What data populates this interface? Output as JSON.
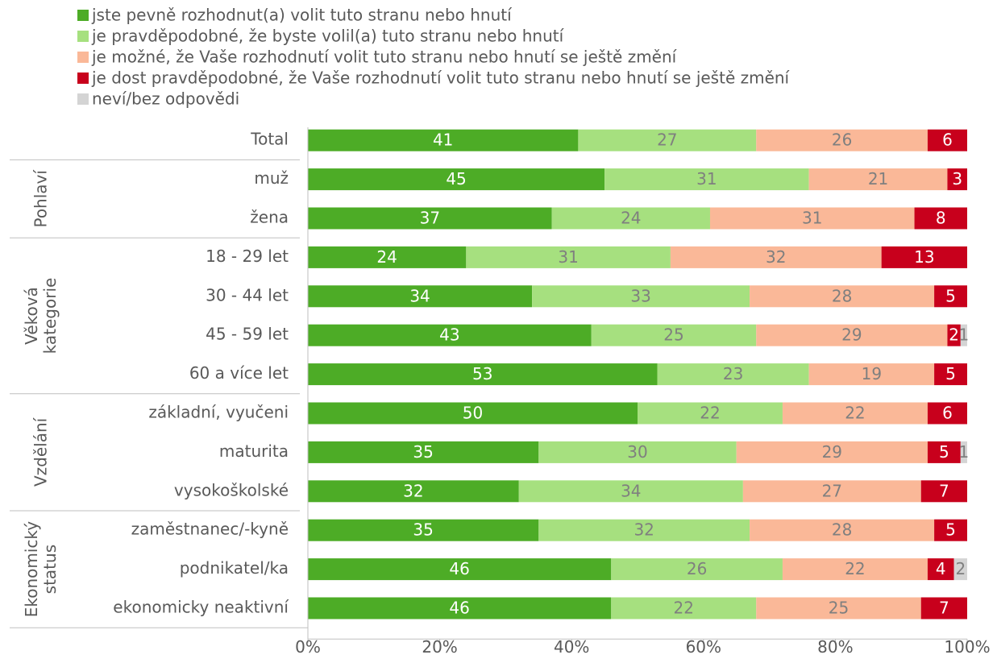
{
  "chart_data": {
    "type": "bar",
    "orientation": "horizontal",
    "stacked": true,
    "percent": true,
    "title": "",
    "xlabel": "",
    "ylabel": "",
    "xlim": [
      0,
      100
    ],
    "x_ticks": [
      "0%",
      "20%",
      "40%",
      "60%",
      "80%",
      "100%"
    ],
    "grid": false,
    "legend_position": "top-left",
    "categories": [
      "Total",
      "muž",
      "žena",
      "18 - 29 let",
      "30 - 44 let",
      "45 - 59 let",
      "60 a více let",
      "základní, vyučeni",
      "maturita",
      "vysokoškolské",
      "zaměstnanec/-kyně",
      "podnikatel/ka",
      "ekonomicky neaktivní"
    ],
    "groups": [
      {
        "label": "Pohlaví",
        "start": 1,
        "end": 2
      },
      {
        "label": "Věková kategorie",
        "lines": [
          "Věková",
          "kategorie"
        ],
        "start": 3,
        "end": 6
      },
      {
        "label": "Vzdělání",
        "start": 7,
        "end": 9
      },
      {
        "label": "Ekonomický status",
        "lines": [
          "Ekonomický",
          "status"
        ],
        "start": 10,
        "end": 12
      }
    ],
    "series": [
      {
        "name": "jste pevně rozhodnut(a) volit tuto stranu nebo hnutí",
        "color": "#4dac26",
        "label_color": "#ffffff",
        "values": [
          41,
          45,
          37,
          24,
          34,
          43,
          53,
          50,
          35,
          32,
          35,
          46,
          46
        ]
      },
      {
        "name": "je pravděpodobné, že byste volil(a) tuto stranu nebo hnutí",
        "color": "#a6e07f",
        "label_color": "#7f7f7f",
        "values": [
          27,
          31,
          24,
          31,
          33,
          25,
          23,
          22,
          30,
          34,
          32,
          26,
          22
        ]
      },
      {
        "name": "je možné, že Vaše rozhodnutí volit tuto stranu nebo hnutí se ještě změní",
        "color": "#fab898",
        "label_color": "#7f7f7f",
        "values": [
          26,
          21,
          31,
          32,
          28,
          29,
          19,
          22,
          29,
          27,
          28,
          22,
          25
        ]
      },
      {
        "name": "je dost pravděpodobné, že Vaše rozhodnutí volit tuto stranu nebo hnutí se ještě změní",
        "color": "#c8001c",
        "label_color": "#ffffff",
        "values": [
          6,
          3,
          8,
          13,
          5,
          2,
          5,
          6,
          5,
          7,
          5,
          4,
          7
        ]
      },
      {
        "name": "neví/bez odpovědi",
        "color": "#d4d4d4",
        "label_color": "#7f7f7f",
        "values": [
          0,
          0,
          0,
          0,
          0,
          1,
          0,
          0,
          1,
          0,
          0,
          2,
          0
        ]
      }
    ]
  }
}
